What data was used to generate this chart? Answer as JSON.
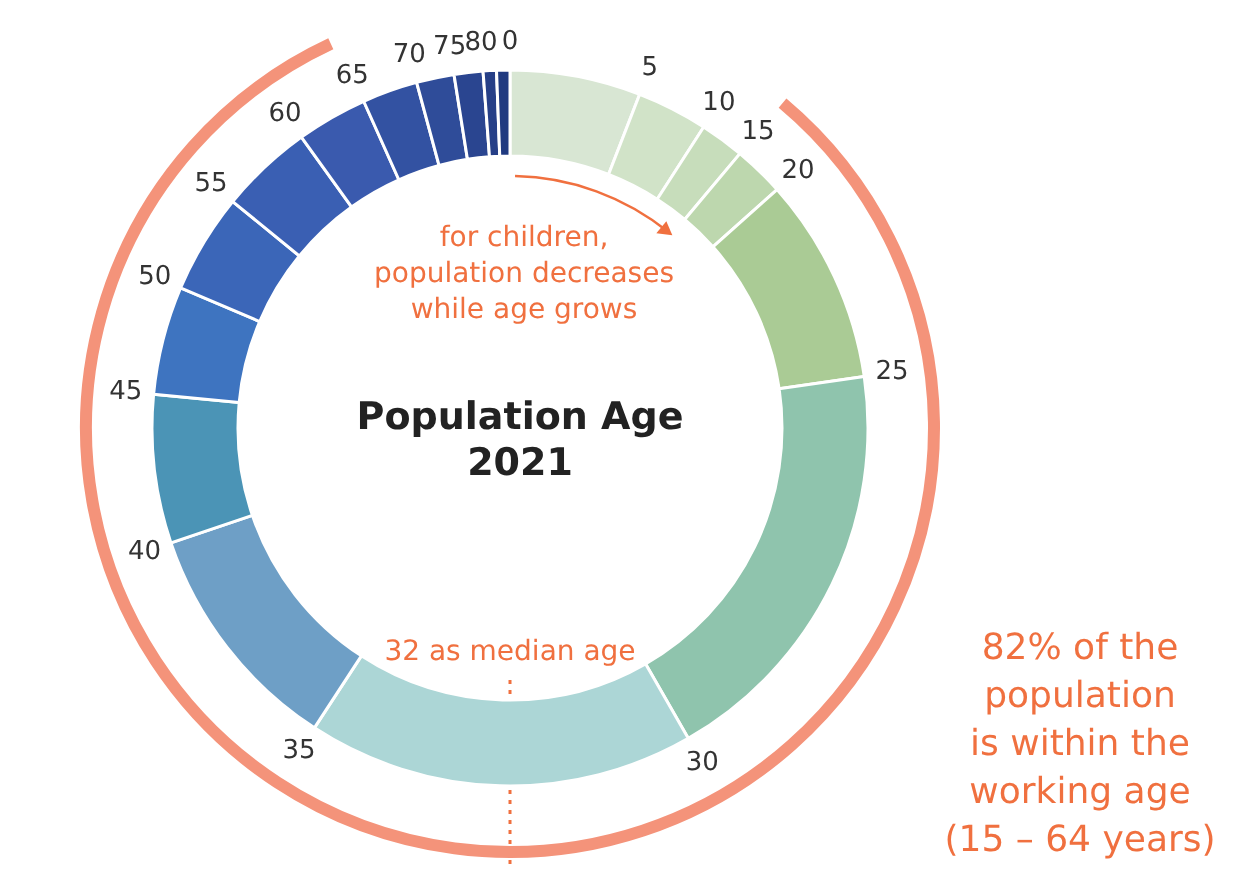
{
  "chart_data": {
    "type": "donut",
    "title": "Population Age",
    "subtitle": "2021",
    "categories": [
      "0",
      "5",
      "10",
      "15",
      "20",
      "25",
      "30",
      "35",
      "40",
      "45",
      "50",
      "55",
      "60",
      "65",
      "70",
      "75",
      "80",
      null
    ],
    "values": [
      5.9,
      3.2,
      2.0,
      2.3,
      9.3,
      19.0,
      17.5,
      10.6,
      6.7,
      4.9,
      4.5,
      4.2,
      3.2,
      2.5,
      1.7,
      1.3,
      0.6,
      0.6
    ],
    "colors": [
      "#d8e6d3",
      "#d1e3c8",
      "#c7ddbb",
      "#bdd7ae",
      "#aacb95",
      "#8fc4ad",
      "#acd6d6",
      "#6e9fc6",
      "#4b94b6",
      "#3e74c0",
      "#3b66b8",
      "#3a5fb3",
      "#3a5aae",
      "#3352a2",
      "#2f4c99",
      "#2a4590",
      "#263f87",
      "#203a80"
    ],
    "annotations": [
      "for children,\npopulation decreases\nwhile age grows",
      "32 as median age",
      "82% of the\npopulation\nis within the\nworking age\n(15 – 64 years)"
    ]
  }
}
